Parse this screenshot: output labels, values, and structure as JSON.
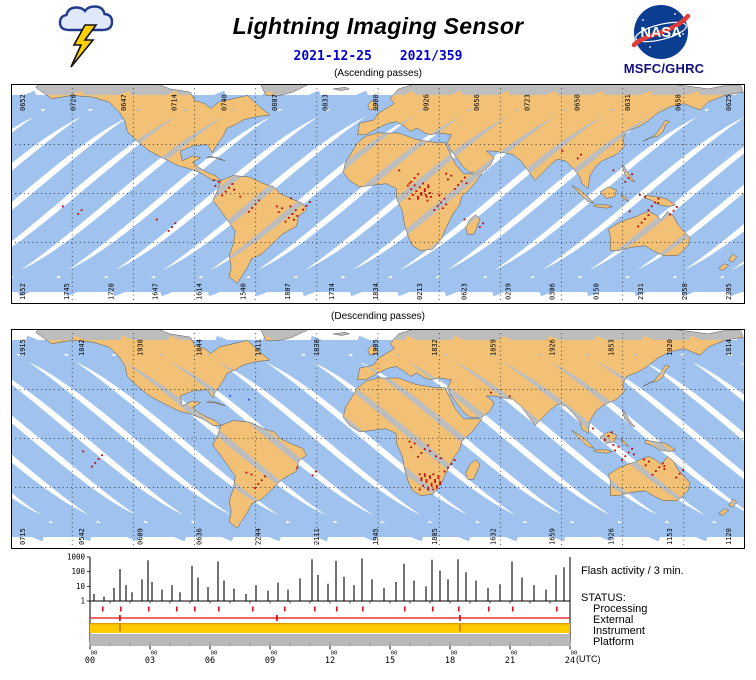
{
  "header": {
    "title": "Lightning Imaging Sensor",
    "date": "2021-12-25",
    "doy": "2021/359",
    "nasa": "NASA",
    "org": "MSFC/GHRC"
  },
  "colors": {
    "swath_ocean": "#9fc3ee",
    "land_coverage": "#f2c175",
    "land_no_coverage": "#bdbdbd",
    "lightning": "#c40000",
    "blue_event": "#2a52e0",
    "date_text": "#0000cc",
    "nasa_blue": "#0b3d91",
    "nasa_red": "#e23d38",
    "org_text": "#10107e",
    "status_red": "#dd1111",
    "status_yellow": "#ffcc00",
    "status_gray": "#b9b9b9"
  },
  "maps": {
    "ascending": {
      "caption": "(Ascending passes)",
      "dir": "asc",
      "top_times": [
        "0652",
        "0720",
        "0647",
        "0714",
        "0740",
        "0807",
        "0833",
        "0900",
        "0926",
        "0656",
        "0723",
        "0650",
        "0631",
        "0658",
        "0625"
      ],
      "bottom_times": [
        "1652",
        "1745",
        "1720",
        "1647",
        "1614",
        "1540",
        "1807",
        "1734",
        "1834",
        "0213",
        "0623",
        "0239",
        "0306",
        "0150",
        "2331",
        "2358",
        "2305"
      ],
      "flash_clusters": [
        [
          -104,
          -20,
          4
        ],
        [
          -150,
          -12,
          3
        ],
        [
          -76,
          4,
          8
        ],
        [
          -63,
          -6,
          5
        ],
        [
          -45,
          -12,
          10
        ],
        [
          -38,
          -7,
          4
        ],
        [
          15,
          10,
          5
        ],
        [
          20,
          2,
          18
        ],
        [
          28,
          -5,
          10
        ],
        [
          38,
          8,
          8
        ],
        [
          47,
          -20,
          3
        ],
        [
          120,
          10,
          4
        ],
        [
          133,
          -5,
          6
        ],
        [
          128,
          -15,
          5
        ],
        [
          142,
          -10,
          4
        ],
        [
          95,
          22,
          3
        ]
      ],
      "blue_events": []
    },
    "descending": {
      "caption": "(Descending passes)",
      "dir": "desc",
      "top_times": [
        "1915",
        "1842",
        "1938",
        "1844",
        "1911",
        "1838",
        "1905",
        "1832",
        "1859",
        "1926",
        "1853",
        "1920",
        "1814"
      ],
      "bottom_times": [
        "0715",
        "0542",
        "0609",
        "0636",
        "2244",
        "2111",
        "1945",
        "1805",
        "1632",
        "1659",
        "1326",
        "1153",
        "1120"
      ],
      "flash_clusters": [
        [
          25,
          -26,
          25
        ],
        [
          20,
          -6,
          8
        ],
        [
          33,
          -15,
          6
        ],
        [
          -60,
          -25,
          6
        ],
        [
          -140,
          -12,
          5
        ],
        [
          -35,
          -22,
          3
        ],
        [
          120,
          -8,
          8
        ],
        [
          110,
          2,
          4
        ],
        [
          135,
          -17,
          8
        ],
        [
          145,
          -21,
          4
        ],
        [
          60,
          24,
          2
        ]
      ],
      "blue_events": [
        [
          -68,
          22,
          2
        ]
      ]
    }
  },
  "chart_data": {
    "type": "bar",
    "title": "Flash activity / 3 min.",
    "y_scale": "log",
    "ylim": [
      1,
      1000
    ],
    "y_ticks": [
      "1000",
      "100",
      "10",
      "1"
    ],
    "xlim_hours": [
      0,
      24
    ],
    "x_ticks": [
      "00",
      "03",
      "06",
      "09",
      "12",
      "15",
      "18",
      "21",
      "24"
    ],
    "x_unit": "(UTC)",
    "points": [
      [
        0.2,
        3
      ],
      [
        0.7,
        2
      ],
      [
        1.2,
        8
      ],
      [
        1.5,
        150
      ],
      [
        1.8,
        12
      ],
      [
        2.1,
        4
      ],
      [
        2.6,
        30
      ],
      [
        2.9,
        600
      ],
      [
        3.1,
        20
      ],
      [
        3.6,
        6
      ],
      [
        4.1,
        12
      ],
      [
        4.5,
        4
      ],
      [
        5.1,
        250
      ],
      [
        5.4,
        40
      ],
      [
        5.9,
        9
      ],
      [
        6.4,
        500
      ],
      [
        6.7,
        25
      ],
      [
        7.2,
        7
      ],
      [
        7.8,
        3
      ],
      [
        8.3,
        12
      ],
      [
        8.9,
        5
      ],
      [
        9.4,
        18
      ],
      [
        9.9,
        6
      ],
      [
        10.5,
        35
      ],
      [
        11.1,
        700
      ],
      [
        11.4,
        60
      ],
      [
        11.9,
        15
      ],
      [
        12.3,
        550
      ],
      [
        12.7,
        45
      ],
      [
        13.2,
        12
      ],
      [
        13.6,
        800
      ],
      [
        14.1,
        30
      ],
      [
        14.7,
        8
      ],
      [
        15.3,
        20
      ],
      [
        15.7,
        350
      ],
      [
        16.2,
        25
      ],
      [
        16.8,
        10
      ],
      [
        17.1,
        650
      ],
      [
        17.5,
        120
      ],
      [
        17.9,
        30
      ],
      [
        18.4,
        700
      ],
      [
        18.8,
        90
      ],
      [
        19.3,
        25
      ],
      [
        19.9,
        8
      ],
      [
        20.5,
        14
      ],
      [
        21.1,
        500
      ],
      [
        21.6,
        40
      ],
      [
        22.2,
        12
      ],
      [
        22.8,
        6
      ],
      [
        23.3,
        60
      ],
      [
        23.7,
        200
      ]
    ]
  },
  "status": {
    "heading": "STATUS:",
    "minor_tick_label": "00",
    "rows": [
      {
        "label": "Processing",
        "type": "ticks",
        "ticks": [
          0.6,
          1.5,
          2.9,
          4.3,
          5.2,
          6.4,
          8.1,
          9.7,
          11.2,
          12.3,
          13.6,
          15.7,
          17.1,
          18.4,
          19.9,
          21.1,
          23.3
        ]
      },
      {
        "label": "External",
        "type": "line",
        "ticks": [
          1.45,
          9.3,
          18.45
        ]
      },
      {
        "label": "Instrument",
        "type": "band",
        "ticks": [
          1.45,
          18.45
        ]
      },
      {
        "label": "Platform",
        "type": "band",
        "ticks": []
      }
    ]
  }
}
